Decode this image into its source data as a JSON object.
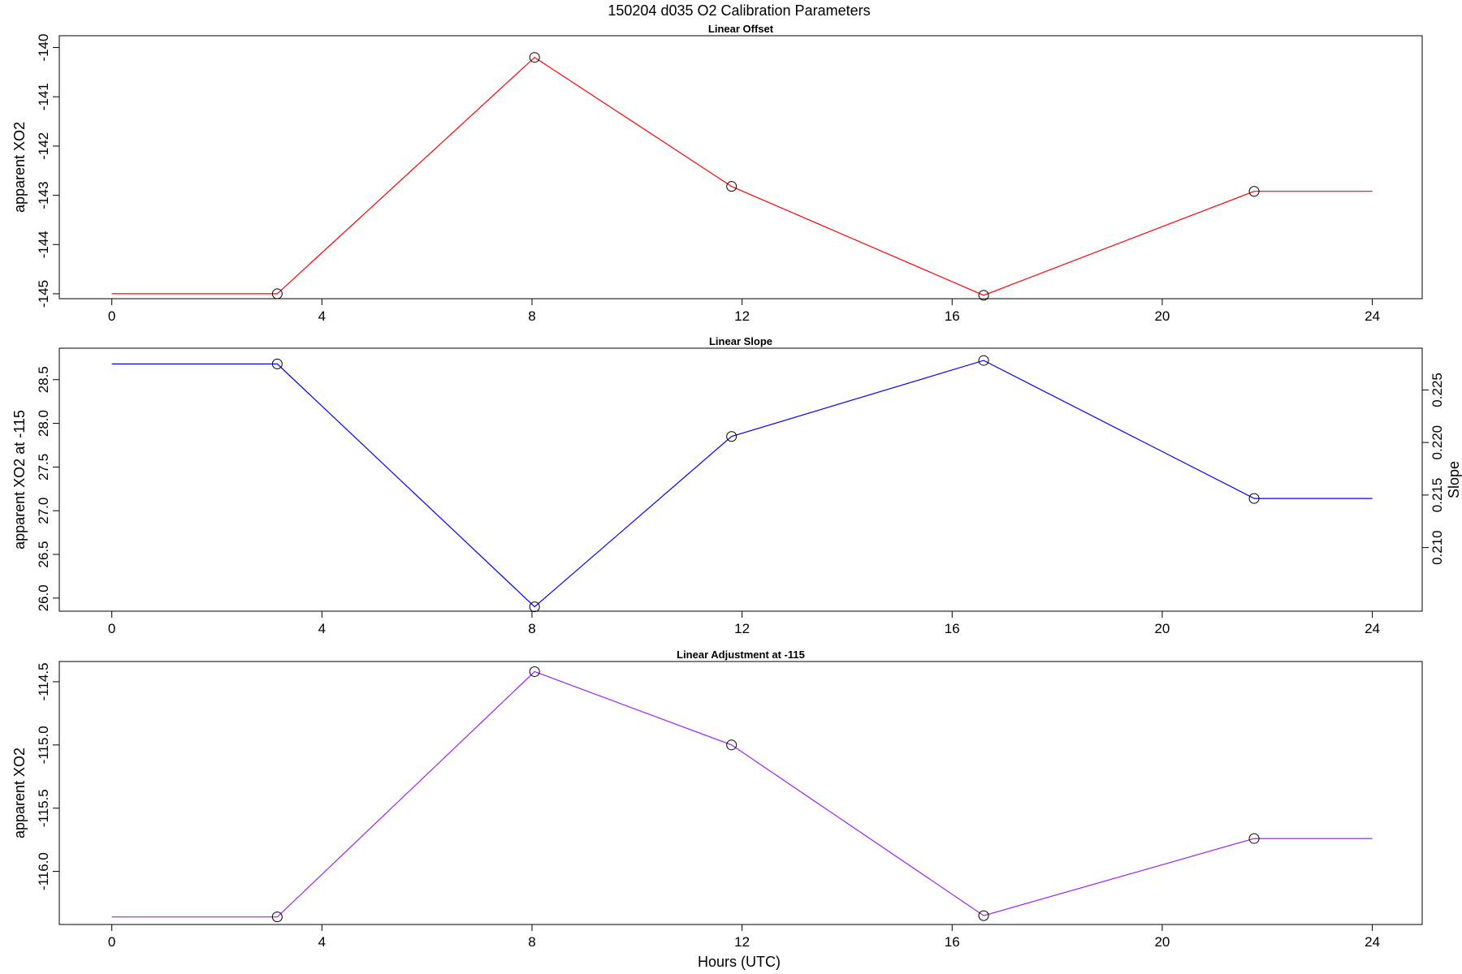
{
  "figure": {
    "title": "150204   d035   O2 Calibration Parameters",
    "xlabel": "Hours (UTC)"
  },
  "chart_data": [
    {
      "type": "line",
      "title": "Linear Offset",
      "ylabel": "apparent XO2",
      "xlim": [
        -1.0,
        24.95
      ],
      "ylim": [
        -145.1,
        -139.76
      ],
      "xticks": [
        0,
        4,
        8,
        12,
        16,
        20,
        24
      ],
      "yticks": [
        -145,
        -144,
        -143,
        -142,
        -141,
        -140
      ],
      "color": "#ff0000",
      "line_x": [
        0,
        3.15,
        8.05,
        11.8,
        16.6,
        21.75,
        24
      ],
      "line_y": [
        -145.0,
        -145.0,
        -140.2,
        -142.82,
        -145.03,
        -142.92,
        -142.92
      ],
      "points_x": [
        3.15,
        8.05,
        11.8,
        16.6,
        21.75
      ],
      "points_y": [
        -145.0,
        -140.2,
        -142.82,
        -145.03,
        -142.92
      ]
    },
    {
      "type": "line",
      "title": "Linear Slope",
      "ylabel": "apparent XO2 at -115",
      "ylabel_right": "Slope",
      "xlim": [
        -1.0,
        24.95
      ],
      "ylim": [
        25.85,
        28.86
      ],
      "xticks": [
        0,
        4,
        8,
        12,
        16,
        20,
        24
      ],
      "yticks": [
        26.0,
        26.5,
        27.0,
        27.5,
        28.0,
        28.5
      ],
      "right_ylim": [
        0.20395,
        0.22897
      ],
      "right_yticks": [
        0.21,
        0.215,
        0.22,
        0.225
      ],
      "color": "#0000ff",
      "line_x": [
        0,
        3.15,
        8.05,
        11.8,
        16.6,
        21.75,
        24
      ],
      "line_y": [
        28.68,
        28.68,
        25.9,
        27.85,
        28.72,
        27.14,
        27.14
      ],
      "points_x": [
        3.15,
        8.05,
        11.8,
        16.6,
        21.75
      ],
      "points_y": [
        28.68,
        25.9,
        27.85,
        28.72,
        27.14
      ]
    },
    {
      "type": "line",
      "title": "Linear Adjustment at -115",
      "ylabel": "apparent XO2",
      "xlim": [
        -1.0,
        24.95
      ],
      "ylim": [
        -116.42,
        -114.34
      ],
      "xticks": [
        0,
        4,
        8,
        12,
        16,
        20,
        24
      ],
      "yticks": [
        -116.0,
        -115.5,
        -115.0,
        -114.5
      ],
      "color": "#a020f0",
      "line_x": [
        0,
        3.15,
        8.05,
        11.8,
        16.6,
        21.75,
        24
      ],
      "line_y": [
        -116.36,
        -116.36,
        -114.42,
        -115.0,
        -116.35,
        -115.74,
        -115.74
      ],
      "points_x": [
        3.15,
        8.05,
        11.8,
        16.6,
        21.75
      ],
      "points_y": [
        -116.36,
        -114.42,
        -115.0,
        -116.35,
        -115.74
      ]
    }
  ]
}
